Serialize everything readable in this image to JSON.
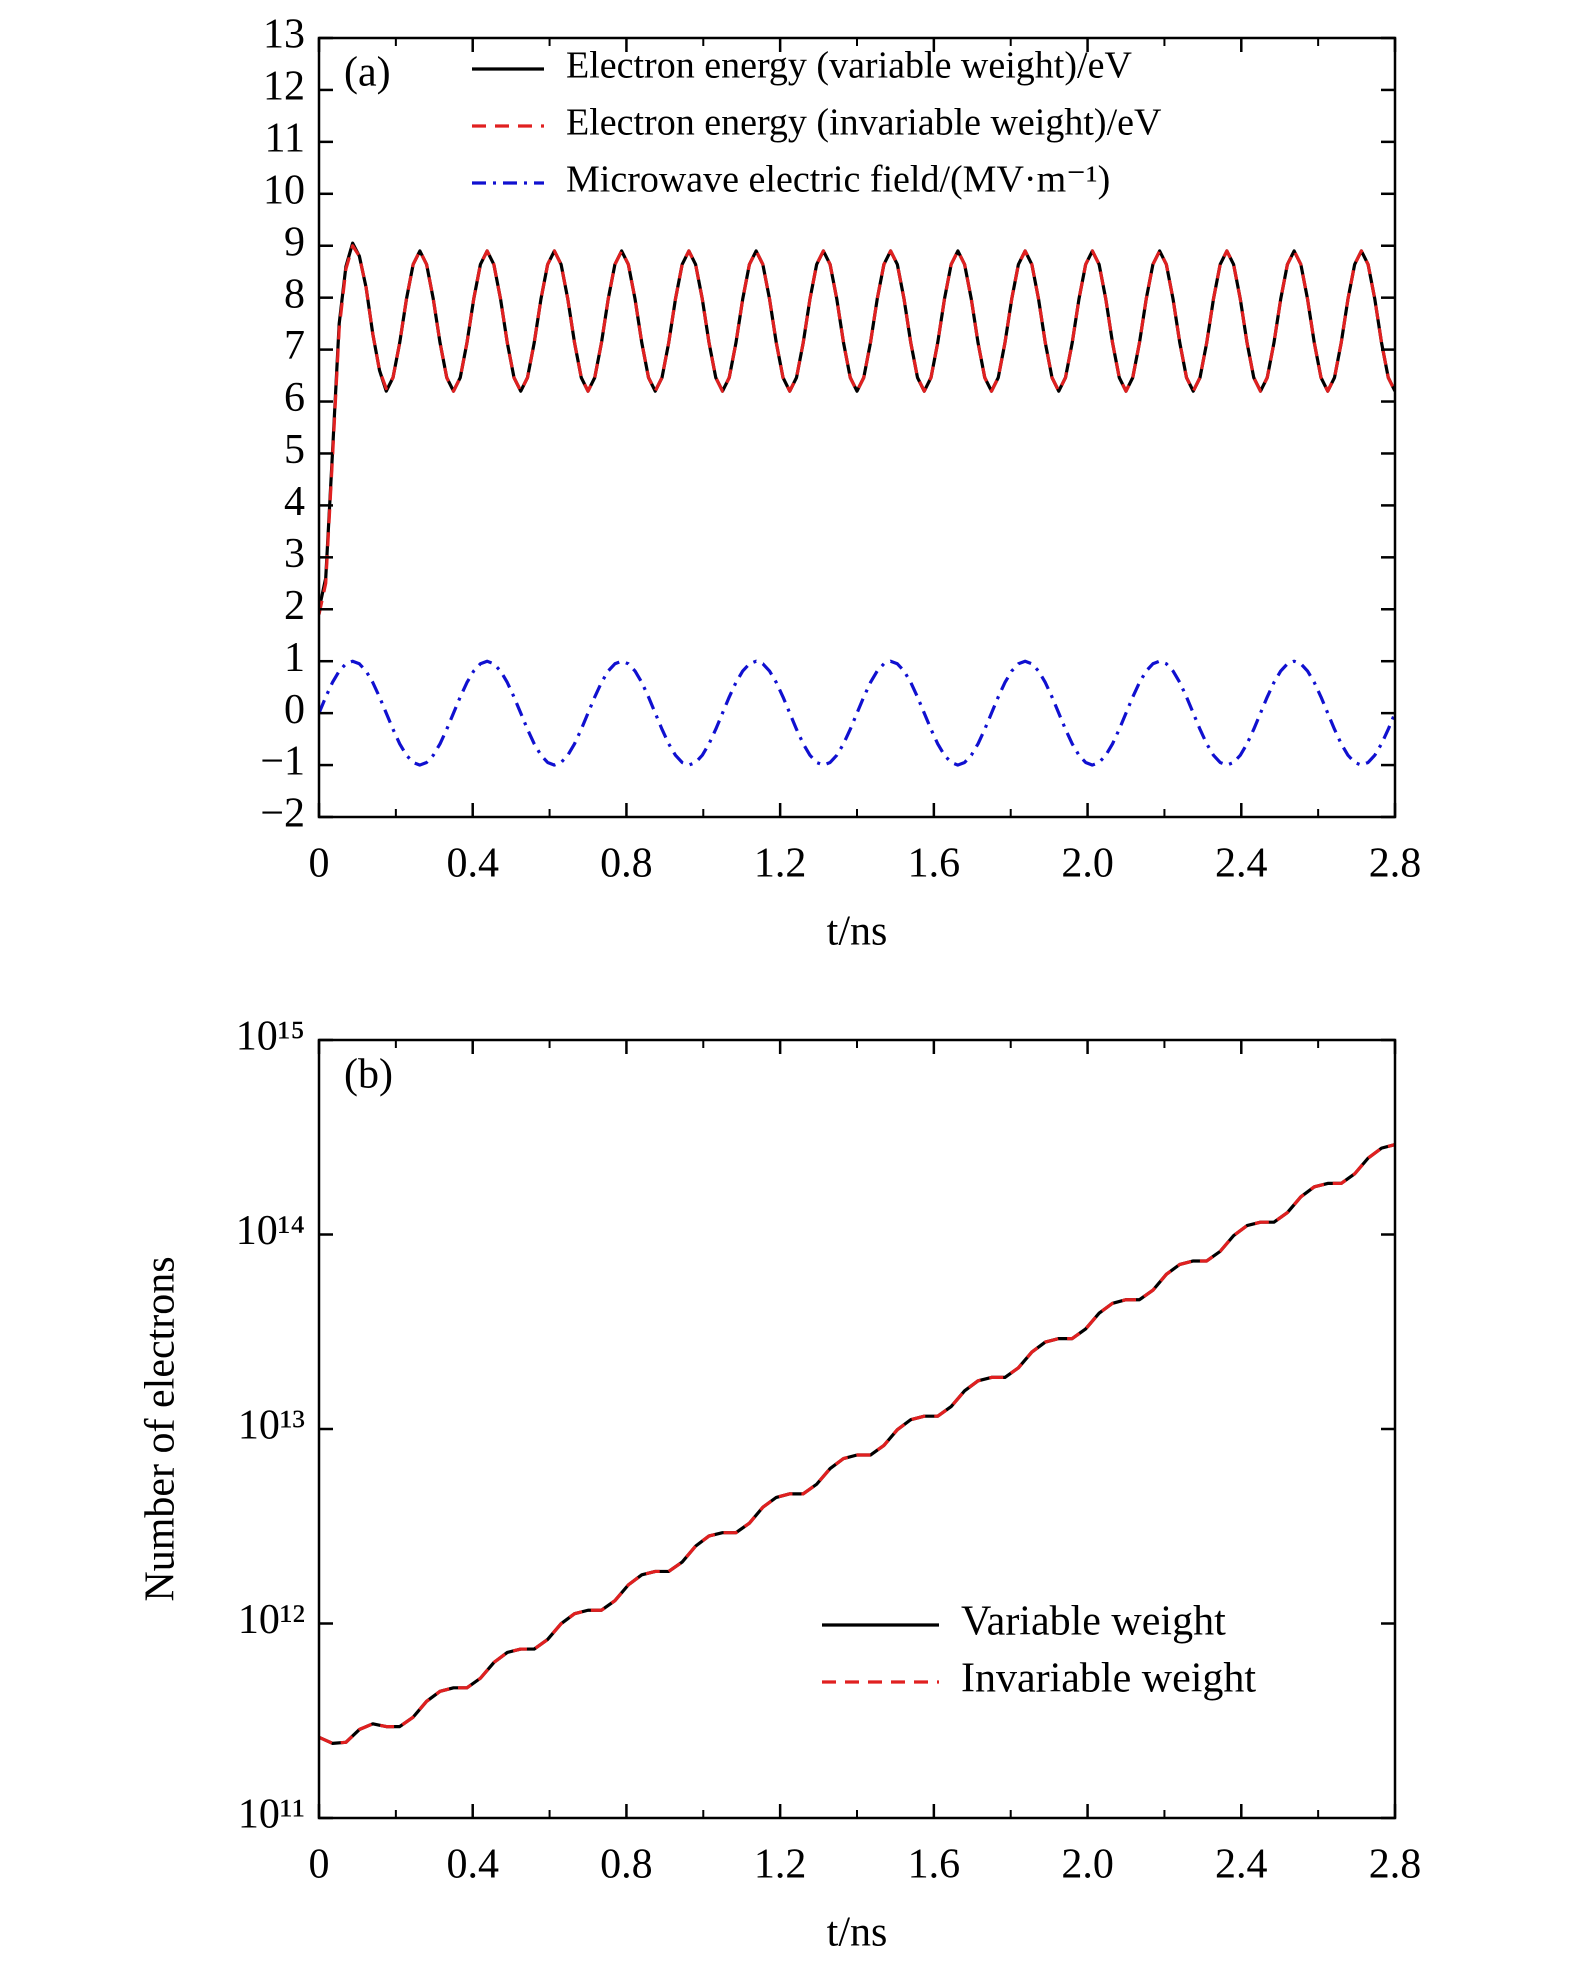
{
  "chart_data": [
    {
      "type": "line",
      "panel_label": "(a)",
      "xlabel": "t/ns",
      "xlim": [
        0,
        2.8
      ],
      "xticks": [
        0,
        0.4,
        0.8,
        1.2,
        1.6,
        {
          "value": 2,
          "label": "2.0"
        },
        2.4,
        2.8
      ],
      "xminorticks": [
        0.2,
        0.6,
        1.0,
        1.4,
        1.8,
        2.2,
        2.6
      ],
      "ylim": [
        -2,
        13
      ],
      "yticks": [
        {
          "value": -2,
          "label": "−2"
        },
        {
          "value": -1,
          "label": "−1"
        },
        0,
        1,
        2,
        3,
        4,
        5,
        6,
        7,
        8,
        9,
        10,
        11,
        12,
        13
      ],
      "ylog": false,
      "legend": "upper right",
      "x": [
        0,
        0.0175,
        0.035,
        0.0525,
        0.07,
        0.0875,
        0.105,
        0.1225,
        0.14,
        0.1575,
        0.175,
        0.1925,
        0.21,
        0.2275,
        0.245,
        0.2625,
        0.28,
        0.2975,
        0.315,
        0.3325,
        0.35,
        0.3675,
        0.385,
        0.4025,
        0.42,
        0.4375,
        0.455,
        0.4725,
        0.49,
        0.5075,
        0.525,
        0.5425,
        0.56,
        0.5775,
        0.595,
        0.6125,
        0.63,
        0.6475,
        0.665,
        0.6825,
        0.7,
        0.7175,
        0.735,
        0.7525,
        0.77,
        0.7875,
        0.805,
        0.8225,
        0.84,
        0.8575,
        0.875,
        0.8925,
        0.91,
        0.9275,
        0.945,
        0.9625,
        0.98,
        0.9975,
        1.015,
        1.0325,
        1.05,
        1.0675,
        1.085,
        1.1025,
        1.12,
        1.1375,
        1.155,
        1.1725,
        1.19,
        1.2075,
        1.225,
        1.2425,
        1.26,
        1.2775,
        1.295,
        1.3125,
        1.33,
        1.3475,
        1.365,
        1.3825,
        1.4,
        1.4175,
        1.435,
        1.4525,
        1.47,
        1.4875,
        1.505,
        1.5225,
        1.54,
        1.5575,
        1.575,
        1.5925,
        1.61,
        1.6275,
        1.645,
        1.6625,
        1.68,
        1.6975,
        1.715,
        1.7325,
        1.75,
        1.7675,
        1.785,
        1.8025,
        1.82,
        1.8375,
        1.855,
        1.8725,
        1.89,
        1.9075,
        1.925,
        1.9425,
        1.96,
        1.9775,
        1.995,
        2.0125,
        2.03,
        2.0475,
        2.065,
        2.0825,
        2.1,
        2.1175,
        2.135,
        2.1525,
        2.17,
        2.1875,
        2.205,
        2.2225,
        2.24,
        2.2575,
        2.275,
        2.2925,
        2.31,
        2.3275,
        2.345,
        2.3625,
        2.38,
        2.3975,
        2.415,
        2.4325,
        2.45,
        2.4675,
        2.485,
        2.5025,
        2.52,
        2.5375,
        2.555,
        2.5725,
        2.59,
        2.6075,
        2.625,
        2.6425,
        2.66,
        2.6775,
        2.695,
        2.7125,
        2.73,
        2.7475,
        2.765,
        2.7825,
        2.8
      ],
      "series": [
        {
          "name": "Electron energy (variable weight)/eV",
          "color": "#000000",
          "linestyle": "solid",
          "values": [
            2.0,
            2.6,
            5.0,
            7.5,
            8.6,
            9.05,
            8.8,
            8.2,
            7.3,
            6.6,
            6.2,
            6.46,
            7.13,
            7.97,
            8.64,
            8.9,
            8.64,
            7.97,
            7.13,
            6.46,
            6.2,
            6.46,
            7.13,
            7.97,
            8.64,
            8.9,
            8.64,
            7.97,
            7.13,
            6.46,
            6.2,
            6.46,
            7.13,
            7.97,
            8.64,
            8.9,
            8.64,
            7.97,
            7.13,
            6.46,
            6.2,
            6.46,
            7.13,
            7.97,
            8.64,
            8.9,
            8.64,
            7.97,
            7.13,
            6.46,
            6.2,
            6.46,
            7.13,
            7.97,
            8.64,
            8.9,
            8.64,
            7.97,
            7.13,
            6.46,
            6.2,
            6.46,
            7.13,
            7.97,
            8.64,
            8.9,
            8.64,
            7.97,
            7.13,
            6.46,
            6.2,
            6.46,
            7.13,
            7.97,
            8.64,
            8.9,
            8.64,
            7.97,
            7.13,
            6.46,
            6.2,
            6.46,
            7.13,
            7.97,
            8.64,
            8.9,
            8.64,
            7.97,
            7.13,
            6.46,
            6.2,
            6.46,
            7.13,
            7.97,
            8.64,
            8.9,
            8.64,
            7.97,
            7.13,
            6.46,
            6.2,
            6.46,
            7.13,
            7.97,
            8.64,
            8.9,
            8.64,
            7.97,
            7.13,
            6.46,
            6.2,
            6.46,
            7.13,
            7.97,
            8.64,
            8.9,
            8.64,
            7.97,
            7.13,
            6.46,
            6.2,
            6.46,
            7.13,
            7.97,
            8.64,
            8.9,
            8.64,
            7.97,
            7.13,
            6.46,
            6.2,
            6.46,
            7.13,
            7.97,
            8.64,
            8.9,
            8.64,
            7.97,
            7.13,
            6.46,
            6.2,
            6.46,
            7.13,
            7.97,
            8.64,
            8.9,
            8.64,
            7.97,
            7.13,
            6.46,
            6.2,
            6.46,
            7.13,
            7.97,
            8.64,
            8.9,
            8.64,
            7.97,
            7.13,
            6.46,
            6.2
          ]
        },
        {
          "name": "Electron energy (invariable weight)/eV",
          "color": "#e02020",
          "linestyle": "dashed",
          "values": [
            1.9,
            2.5,
            4.9,
            7.4,
            8.55,
            9.0,
            8.8,
            8.2,
            7.3,
            6.6,
            6.25,
            6.46,
            7.13,
            7.97,
            8.64,
            8.9,
            8.64,
            7.97,
            7.13,
            6.46,
            6.2,
            6.46,
            7.13,
            7.97,
            8.64,
            8.9,
            8.64,
            7.97,
            7.13,
            6.46,
            6.2,
            6.46,
            7.13,
            7.97,
            8.64,
            8.9,
            8.64,
            7.97,
            7.13,
            6.46,
            6.2,
            6.46,
            7.13,
            7.97,
            8.64,
            8.9,
            8.64,
            7.97,
            7.13,
            6.46,
            6.2,
            6.46,
            7.13,
            7.97,
            8.64,
            8.9,
            8.64,
            7.97,
            7.13,
            6.46,
            6.2,
            6.46,
            7.13,
            7.97,
            8.64,
            8.9,
            8.64,
            7.97,
            7.13,
            6.46,
            6.2,
            6.46,
            7.13,
            7.97,
            8.64,
            8.9,
            8.64,
            7.97,
            7.13,
            6.46,
            6.2,
            6.46,
            7.13,
            7.97,
            8.64,
            8.9,
            8.64,
            7.97,
            7.13,
            6.46,
            6.2,
            6.46,
            7.13,
            7.97,
            8.64,
            8.9,
            8.64,
            7.97,
            7.13,
            6.46,
            6.2,
            6.46,
            7.13,
            7.97,
            8.64,
            8.9,
            8.64,
            7.97,
            7.13,
            6.46,
            6.2,
            6.46,
            7.13,
            7.97,
            8.64,
            8.9,
            8.64,
            7.97,
            7.13,
            6.46,
            6.2,
            6.46,
            7.13,
            7.97,
            8.64,
            8.9,
            8.64,
            7.97,
            7.13,
            6.46,
            6.2,
            6.46,
            7.13,
            7.97,
            8.64,
            8.9,
            8.64,
            7.97,
            7.13,
            6.46,
            6.2,
            6.46,
            7.13,
            7.97,
            8.64,
            8.9,
            8.64,
            7.97,
            7.13,
            6.46,
            6.2,
            6.46,
            7.13,
            7.97,
            8.64,
            8.9,
            8.64,
            7.97,
            7.13,
            6.46,
            6.2
          ]
        },
        {
          "name": "Microwave electric field/(MV·m⁻¹)",
          "color": "#1010d0",
          "linestyle": "dashdot",
          "values": [
            0,
            0.31,
            0.59,
            0.81,
            0.95,
            1,
            0.95,
            0.81,
            0.59,
            0.31,
            0,
            -0.31,
            -0.59,
            -0.81,
            -0.95,
            -1,
            -0.95,
            -0.81,
            -0.59,
            -0.31,
            0,
            0.31,
            0.59,
            0.81,
            0.95,
            1,
            0.95,
            0.81,
            0.59,
            0.31,
            0,
            -0.31,
            -0.59,
            -0.81,
            -0.95,
            -1,
            -0.95,
            -0.81,
            -0.59,
            -0.31,
            0,
            0.31,
            0.59,
            0.81,
            0.95,
            1,
            0.95,
            0.81,
            0.59,
            0.31,
            0,
            -0.31,
            -0.59,
            -0.81,
            -0.95,
            -1,
            -0.95,
            -0.81,
            -0.59,
            -0.31,
            0,
            0.31,
            0.59,
            0.81,
            0.95,
            1,
            0.95,
            0.81,
            0.59,
            0.31,
            0,
            -0.31,
            -0.59,
            -0.81,
            -0.95,
            -1,
            -0.95,
            -0.81,
            -0.59,
            -0.31,
            0,
            0.31,
            0.59,
            0.81,
            0.95,
            1,
            0.95,
            0.81,
            0.59,
            0.31,
            0,
            -0.31,
            -0.59,
            -0.81,
            -0.95,
            -1,
            -0.95,
            -0.81,
            -0.59,
            -0.31,
            0,
            0.31,
            0.59,
            0.81,
            0.95,
            1,
            0.95,
            0.81,
            0.59,
            0.31,
            0,
            -0.31,
            -0.59,
            -0.81,
            -0.95,
            -1,
            -0.95,
            -0.81,
            -0.59,
            -0.31,
            0,
            0.31,
            0.59,
            0.81,
            0.95,
            1,
            0.95,
            0.81,
            0.59,
            0.31,
            0,
            -0.31,
            -0.59,
            -0.81,
            -0.95,
            -1,
            -0.95,
            -0.81,
            -0.59,
            -0.31,
            0,
            0.31,
            0.59,
            0.81,
            0.95,
            1,
            0.95,
            0.81,
            0.59,
            0.31,
            0,
            -0.31,
            -0.59,
            -0.81,
            -0.95,
            -1,
            -0.95,
            -0.81,
            -0.59,
            -0.31,
            0
          ]
        }
      ]
    },
    {
      "type": "line",
      "panel_label": "(b)",
      "xlabel": "t/ns",
      "ylabel": "Number of electrons",
      "xlim": [
        0,
        2.8
      ],
      "xticks": [
        0,
        0.4,
        0.8,
        1.2,
        1.6,
        {
          "value": 2,
          "label": "2.0"
        },
        2.4,
        2.8
      ],
      "xminorticks": [
        0.2,
        0.6,
        1.0,
        1.4,
        1.8,
        2.2,
        2.6
      ],
      "ylim": [
        100000000000.0,
        1000000000000000.0
      ],
      "yticks": [
        {
          "value": 100000000000.0,
          "label": "10¹¹"
        },
        {
          "value": 1000000000000.0,
          "label": "10¹²"
        },
        {
          "value": 10000000000000.0,
          "label": "10¹³"
        },
        {
          "value": 100000000000000.0,
          "label": "10¹⁴"
        },
        {
          "value": 1000000000000000.0,
          "label": "10¹⁵"
        }
      ],
      "ylog": true,
      "legend": "lower right",
      "x": [
        0,
        0.035,
        0.07,
        0.105,
        0.14,
        0.175,
        0.21,
        0.245,
        0.28,
        0.315,
        0.35,
        0.385,
        0.42,
        0.455,
        0.49,
        0.525,
        0.56,
        0.595,
        0.63,
        0.665,
        0.7,
        0.735,
        0.77,
        0.805,
        0.84,
        0.875,
        0.91,
        0.945,
        0.98,
        1.015,
        1.05,
        1.085,
        1.12,
        1.155,
        1.19,
        1.225,
        1.26,
        1.295,
        1.33,
        1.365,
        1.4,
        1.435,
        1.47,
        1.505,
        1.54,
        1.575,
        1.61,
        1.645,
        1.68,
        1.715,
        1.75,
        1.785,
        1.82,
        1.855,
        1.89,
        1.925,
        1.96,
        1.995,
        2.03,
        2.065,
        2.1,
        2.135,
        2.17,
        2.205,
        2.24,
        2.275,
        2.31,
        2.345,
        2.38,
        2.415,
        2.45,
        2.485,
        2.52,
        2.555,
        2.59,
        2.625,
        2.66,
        2.695,
        2.73,
        2.765,
        2.8
      ],
      "series": [
        {
          "name": "Variable weight",
          "color": "#000000",
          "linestyle": "solid",
          "values": [
            260000000000.0,
            242000000000.0,
            245000000000.0,
            285000000000.0,
            305000000000.0,
            295000000000.0,
            295000000000.0,
            330000000000.0,
            398000000000.0,
            448000000000.0,
            467000000000.0,
            467000000000.0,
            523000000000.0,
            630000000000.0,
            710000000000.0,
            739000000000.0,
            739000000000.0,
            828000000000.0,
            998000000000.0,
            1123000000000.0,
            1170000000000.0,
            1170000000000.0,
            1310000000000.0,
            1580000000000.0,
            1780000000000.0,
            1852000000000.0,
            1852000000000.0,
            2070000000000.0,
            2500000000000.0,
            2820000000000.0,
            2930000000000.0,
            2930000000000.0,
            3280000000000.0,
            3960000000000.0,
            4450000000000.0,
            4640000000000.0,
            4640000000000.0,
            5200000000000.0,
            6260000000000.0,
            7050000000000.0,
            7350000000000.0,
            7350000000000.0,
            8230000000000.0,
            9920000000000.0,
            11170000000000.0,
            11640000000000.0,
            11640000000000.0,
            13040000000000.0,
            15710000000000.0,
            17690000000000.0,
            18420000000000.0,
            18420000000000.0,
            20630000000000.0,
            24870000000000.0,
            28000000000000.0,
            29160000000000.0,
            29160000000000.0,
            32700000000000.0,
            39400000000000.0,
            44300000000000.0,
            46200000000000.0,
            46200000000000.0,
            51700000000000.0,
            62400000000000.0,
            70200000000000.0,
            73100000000000.0,
            73100000000000.0,
            81900000000000.0,
            98700000000000.0,
            111100000000000.0,
            115700000000000.0,
            115700000000000.0,
            129600000000000.0,
            156200000000000.0,
            175900000000000.0,
            183100000000000.0,
            183100000000000.0,
            205000000000000.0,
            247000000000000.0,
            278000000000000.0,
            290000000000000.0
          ]
        },
        {
          "name": "Invariable weight",
          "color": "#e02020",
          "linestyle": "dashed",
          "values": [
            260000000000.0,
            242000000000.0,
            245000000000.0,
            285000000000.0,
            305000000000.0,
            295000000000.0,
            295000000000.0,
            330000000000.0,
            398000000000.0,
            448000000000.0,
            467000000000.0,
            467000000000.0,
            523000000000.0,
            630000000000.0,
            710000000000.0,
            739000000000.0,
            739000000000.0,
            828000000000.0,
            998000000000.0,
            1123000000000.0,
            1170000000000.0,
            1170000000000.0,
            1310000000000.0,
            1580000000000.0,
            1780000000000.0,
            1852000000000.0,
            1852000000000.0,
            2070000000000.0,
            2500000000000.0,
            2820000000000.0,
            2930000000000.0,
            2930000000000.0,
            3280000000000.0,
            3960000000000.0,
            4450000000000.0,
            4640000000000.0,
            4640000000000.0,
            5200000000000.0,
            6260000000000.0,
            7050000000000.0,
            7350000000000.0,
            7350000000000.0,
            8230000000000.0,
            9920000000000.0,
            11170000000000.0,
            11640000000000.0,
            11640000000000.0,
            13040000000000.0,
            15710000000000.0,
            17690000000000.0,
            18420000000000.0,
            18420000000000.0,
            20630000000000.0,
            24870000000000.0,
            28000000000000.0,
            29160000000000.0,
            29160000000000.0,
            32700000000000.0,
            39400000000000.0,
            44300000000000.0,
            46200000000000.0,
            46200000000000.0,
            51700000000000.0,
            62400000000000.0,
            70200000000000.0,
            73100000000000.0,
            73100000000000.0,
            81900000000000.0,
            98700000000000.0,
            111100000000000.0,
            115700000000000.0,
            115700000000000.0,
            129600000000000.0,
            156200000000000.0,
            175900000000000.0,
            183100000000000.0,
            183100000000000.0,
            205000000000000.0,
            247000000000000.0,
            278000000000000.0,
            290000000000000.0
          ]
        }
      ]
    }
  ]
}
